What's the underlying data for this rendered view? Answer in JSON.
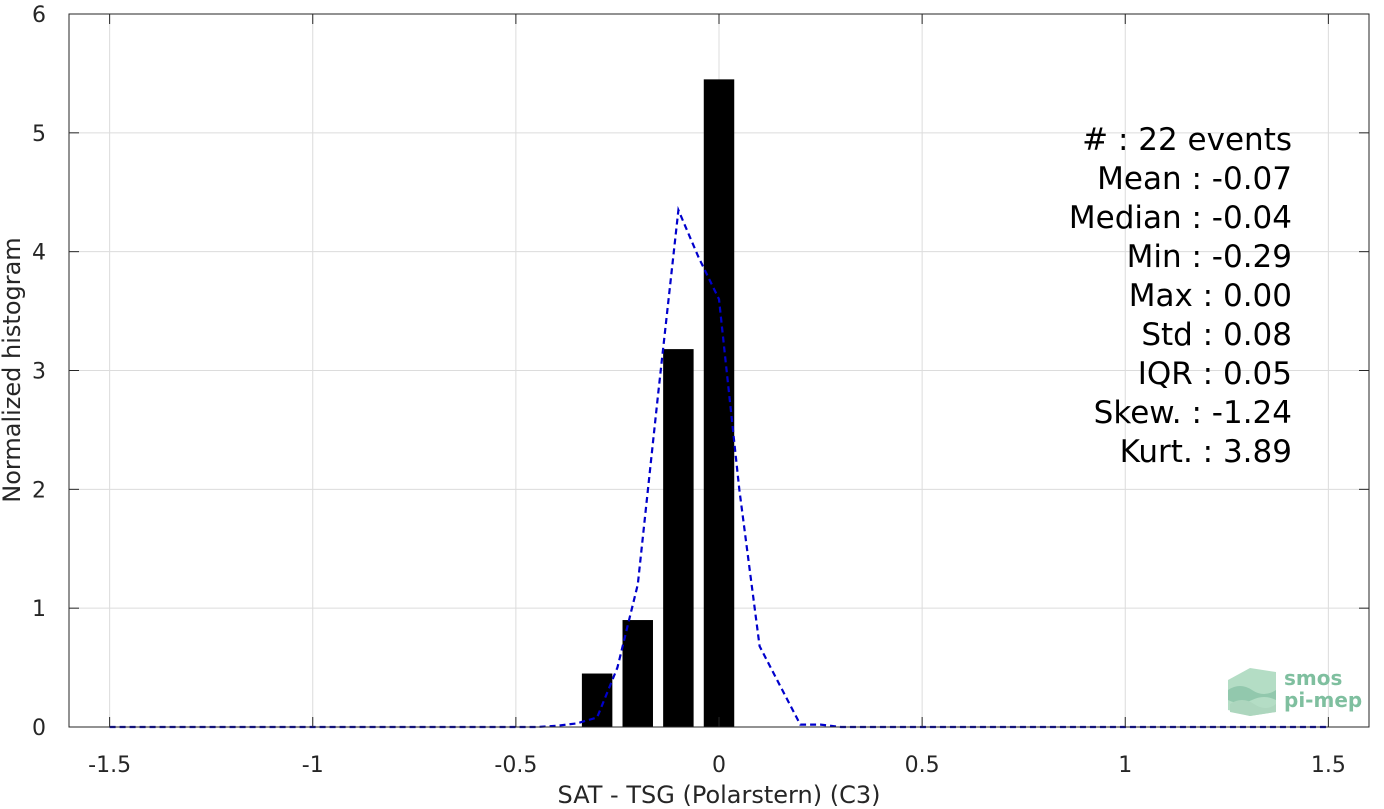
{
  "chart_data": {
    "type": "bar",
    "xlabel": "SAT - TSG (Polarstern) (C3)",
    "ylabel": "Normalized histogram",
    "xlim": [
      -1.6,
      1.6
    ],
    "ylim": [
      0,
      6
    ],
    "xticks": [
      -1.5,
      -1,
      -0.5,
      0,
      0.5,
      1,
      1.5
    ],
    "xtick_labels": [
      "-1.5",
      "-1",
      "-0.5",
      "0",
      "0.5",
      "1",
      "1.5"
    ],
    "yticks": [
      0,
      1,
      2,
      3,
      4,
      5,
      6
    ],
    "ytick_labels": [
      "0",
      "1",
      "2",
      "3",
      "4",
      "5",
      "6"
    ],
    "grid": true,
    "bar_width": 0.075,
    "bars": {
      "x": [
        -0.3,
        -0.2,
        -0.1,
        0.0
      ],
      "values": [
        0.45,
        0.9,
        3.18,
        5.45
      ],
      "color": "#000000"
    },
    "fit_curve": {
      "style": "dashed",
      "color": "#0000cc",
      "x": [
        -1.5,
        -0.45,
        -0.4,
        -0.35,
        -0.3,
        -0.25,
        -0.2,
        -0.15,
        -0.1,
        -0.05,
        0.0,
        0.05,
        0.1,
        0.15,
        0.2,
        0.25,
        0.3,
        1.5
      ],
      "y": [
        0,
        0,
        0.01,
        0.03,
        0.08,
        0.5,
        1.2,
        2.8,
        4.35,
        3.95,
        3.6,
        2.0,
        0.68,
        0.35,
        0.02,
        0.02,
        0,
        0
      ]
    },
    "stats_annotation": [
      "#  : 22 events",
      "Mean : -0.07",
      "Median : -0.04",
      "Min : -0.29",
      "Max : 0.00",
      "Std : 0.08",
      "IQR : 0.05",
      "Skew. : -1.24",
      "Kurt. : 3.89"
    ]
  },
  "logo": {
    "line1": "smos",
    "line2": "pi-mep"
  },
  "colors": {
    "grid": "#dcdcdc",
    "axes": "#262626",
    "logo": "#7fbf9f"
  }
}
